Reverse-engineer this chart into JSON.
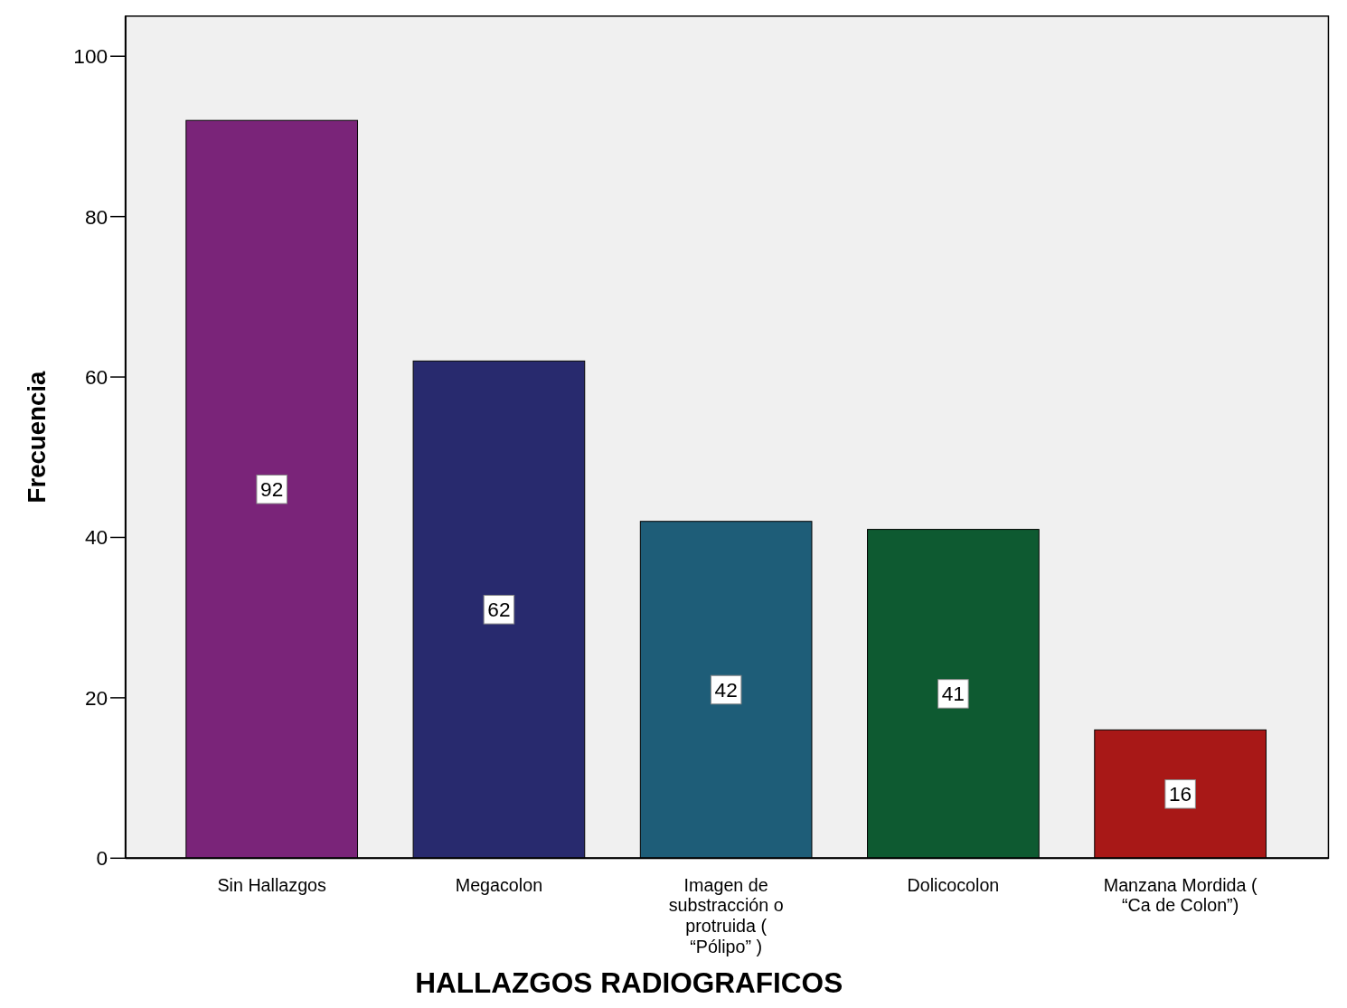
{
  "chart_data": {
    "type": "bar",
    "xlabel": "HALLAZGOS RADIOGRAFICOS",
    "ylabel": "Frecuencia",
    "categories": [
      "Sin Hallazgos",
      "Megacolon",
      "Imagen de substracción o protruida ( “Pólipo” )",
      "Dolicocolon",
      "Manzana Mordida ( “Ca de Colon”)"
    ],
    "values": [
      92,
      62,
      42,
      41,
      16
    ],
    "colors": [
      "#7a2479",
      "#282a6e",
      "#1e5d78",
      "#0e5a31",
      "#a81817"
    ],
    "ylim": [
      0,
      105
    ],
    "yticks": [
      0,
      20,
      40,
      60,
      80,
      100
    ],
    "grid": false,
    "data_labels": true
  }
}
